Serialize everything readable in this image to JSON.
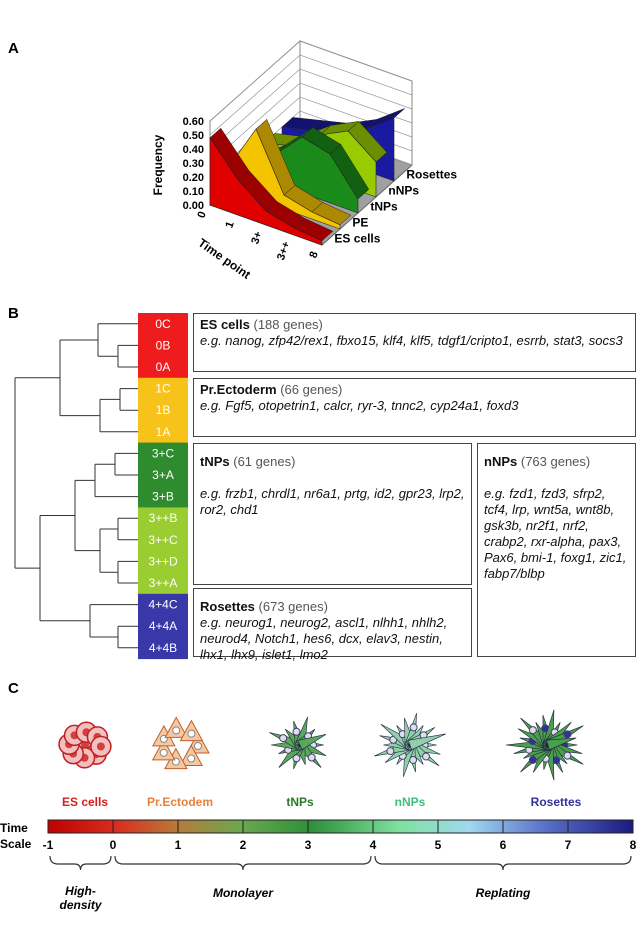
{
  "chart_data": {
    "type": "area3d",
    "panel": "A",
    "categories": [
      "0",
      "1",
      "3+",
      "3++",
      "8"
    ],
    "series": [
      {
        "name": "ES cells",
        "color": "#e00000",
        "values": [
          0.48,
          0.25,
          0.1,
          0.05,
          0.03
        ]
      },
      {
        "name": "PE",
        "color": "#f5c400",
        "values": [
          0.15,
          0.5,
          0.1,
          0.05,
          0.03
        ]
      },
      {
        "name": "tNPs",
        "color": "#1a8a1a",
        "values": [
          0.05,
          0.2,
          0.4,
          0.35,
          0.1
        ]
      },
      {
        "name": "nNPs",
        "color": "#99cc00",
        "values": [
          0.1,
          0.15,
          0.3,
          0.4,
          0.25
        ]
      },
      {
        "name": "Rosettes",
        "color": "#1a1aa0",
        "values": [
          0.1,
          0.15,
          0.2,
          0.3,
          0.45
        ]
      }
    ],
    "ylim": [
      0,
      0.6
    ],
    "yticks": [
      {
        "value": 0,
        "label": "0.00"
      },
      {
        "value": 0.1,
        "label": "0.10"
      },
      {
        "value": 0.2,
        "label": "0.20"
      },
      {
        "value": 0.3,
        "label": "0.30"
      },
      {
        "value": 0.4,
        "label": "0.40"
      },
      {
        "value": 0.5,
        "label": "0.50"
      },
      {
        "value": 0.6,
        "label": "0.60"
      }
    ],
    "ylabel": "Frequency",
    "xlabel": "Time point"
  },
  "panel_b": {
    "label": "B",
    "samples": [
      {
        "name": "0C",
        "color": "#ee1c1c"
      },
      {
        "name": "0B",
        "color": "#ee1c1c"
      },
      {
        "name": "0A",
        "color": "#ee1c1c"
      },
      {
        "name": "1C",
        "color": "#f7c21a"
      },
      {
        "name": "1B",
        "color": "#f7c21a"
      },
      {
        "name": "1A",
        "color": "#f7c21a"
      },
      {
        "name": "3+C",
        "color": "#2e8b2e"
      },
      {
        "name": "3+A",
        "color": "#2e8b2e"
      },
      {
        "name": "3+B",
        "color": "#2e8b2e"
      },
      {
        "name": "3++B",
        "color": "#9acd32"
      },
      {
        "name": "3++C",
        "color": "#9acd32"
      },
      {
        "name": "3++D",
        "color": "#9acd32"
      },
      {
        "name": "3++A",
        "color": "#9acd32"
      },
      {
        "name": "4+4C",
        "color": "#3838a8"
      },
      {
        "name": "4+4A",
        "color": "#3838a8"
      },
      {
        "name": "4+4B",
        "color": "#3838a8"
      }
    ],
    "groups": [
      {
        "name": "ES cells",
        "count": "(188 genes)",
        "genes": "e.g. nanog, zfp42/rex1, fbxo15, klf4, klf5, tdgf1/cripto1, esrrb, stat3, socs3"
      },
      {
        "name": "Pr.Ectoderm",
        "count": "(66 genes)",
        "genes": "e.g. Fgf5, otopetrin1, calcr, ryr-3, tnnc2, cyp24a1, foxd3"
      },
      {
        "name": "tNPs",
        "count": "(61 genes)",
        "genes": "e.g. frzb1, chrdl1, nr6a1, prtg, id2, gpr23, lrp2, ror2, chd1"
      },
      {
        "name": "Rosettes",
        "count": "(673 genes)",
        "genes": "e.g. neurog1, neurog2, ascl1, nlhh1, nhlh2, neurod4, Notch1, hes6, dcx, elav3, nestin, lhx1, lhx9, islet1, lmo2"
      },
      {
        "name": "nNPs",
        "count": "(763 genes)",
        "genes": "e.g. fzd1, fzd3, sfrp2, tcf4, lrp, wnt5a, wnt8b, gsk3b, nr2f1, nrf2, crabp2, rxr-alpha, pax3, Pax6, bmi-1, foxg1, zic1, fabp7/blbp"
      }
    ]
  },
  "panel_c": {
    "label": "C",
    "cell_types": [
      {
        "name": "ES cells",
        "color": "#d42020"
      },
      {
        "name": "Pr.Ectodem",
        "color": "#e8803c"
      },
      {
        "name": "tNPs",
        "color": "#2a7a2a"
      },
      {
        "name": "nNPs",
        "color": "#3cc07c"
      },
      {
        "name": "Rosettes",
        "color": "#33339a"
      }
    ],
    "time_label": "Time Scale",
    "xlim": [
      -1,
      8
    ],
    "ticks": [
      -1,
      0,
      1,
      2,
      3,
      4,
      5,
      6,
      7,
      8
    ],
    "phases": [
      {
        "label": "High-density",
        "range": [
          -1,
          0
        ]
      },
      {
        "label": "Monolayer",
        "range": [
          0,
          4
        ]
      },
      {
        "label": "Replating",
        "range": [
          4,
          8
        ]
      }
    ]
  }
}
